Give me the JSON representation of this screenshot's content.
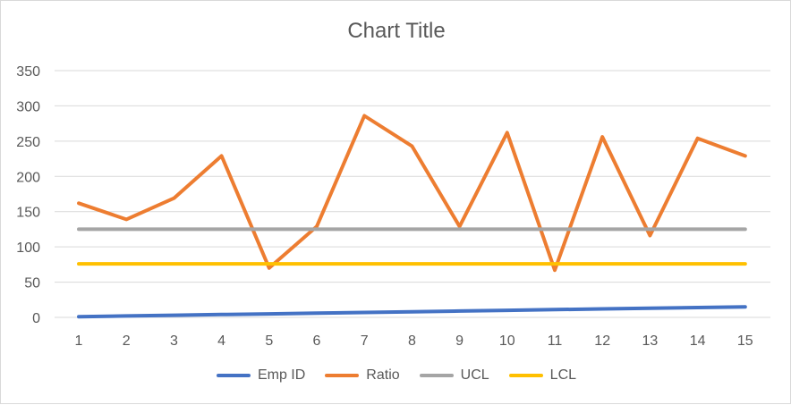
{
  "chart_data": {
    "type": "line",
    "title": "Chart Title",
    "xlabel": "",
    "ylabel": "",
    "x": [
      1,
      2,
      3,
      4,
      5,
      6,
      7,
      8,
      9,
      10,
      11,
      12,
      13,
      14,
      15
    ],
    "ylim": [
      0,
      350
    ],
    "yticks": [
      0,
      50,
      100,
      150,
      200,
      250,
      300,
      350
    ],
    "grid": true,
    "legend_position": "bottom",
    "series": [
      {
        "name": "Emp ID",
        "color": "#4472c4",
        "values": [
          1,
          2,
          3,
          4,
          5,
          6,
          7,
          8,
          9,
          10,
          11,
          12,
          13,
          14,
          15
        ]
      },
      {
        "name": "Ratio",
        "color": "#ed7d31",
        "values": [
          162,
          139,
          169,
          229,
          70,
          129,
          286,
          243,
          129,
          262,
          67,
          256,
          116,
          254,
          229
        ]
      },
      {
        "name": "UCL",
        "color": "#a5a5a5",
        "values": [
          125,
          125,
          125,
          125,
          125,
          125,
          125,
          125,
          125,
          125,
          125,
          125,
          125,
          125,
          125
        ]
      },
      {
        "name": "LCL",
        "color": "#ffc000",
        "values": [
          76,
          76,
          76,
          76,
          76,
          76,
          76,
          76,
          76,
          76,
          76,
          76,
          76,
          76,
          76
        ]
      }
    ]
  }
}
